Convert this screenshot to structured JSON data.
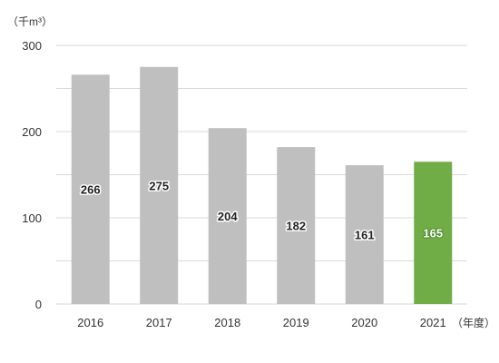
{
  "chart_data": {
    "type": "bar",
    "unit_label": "（千m³）",
    "x_suffix": "（年度）",
    "categories": [
      "2016",
      "2017",
      "2018",
      "2019",
      "2020",
      "2021"
    ],
    "series": [
      {
        "values": [
          266,
          275,
          204,
          182,
          161,
          165
        ]
      }
    ],
    "data_labels": [
      "266",
      "275",
      "204",
      "182",
      "161",
      "165"
    ],
    "ylim": [
      0,
      300
    ],
    "yticks": [
      0,
      100,
      200,
      300
    ],
    "ytick_labels": [
      "0",
      "100",
      "200",
      "300"
    ],
    "grid": true,
    "minor_grid_step": 50,
    "highlight_index": 5,
    "colors": {
      "bar": "#bfbfbf",
      "highlight": "#70ad47",
      "grid": "#d9d9d9"
    }
  }
}
